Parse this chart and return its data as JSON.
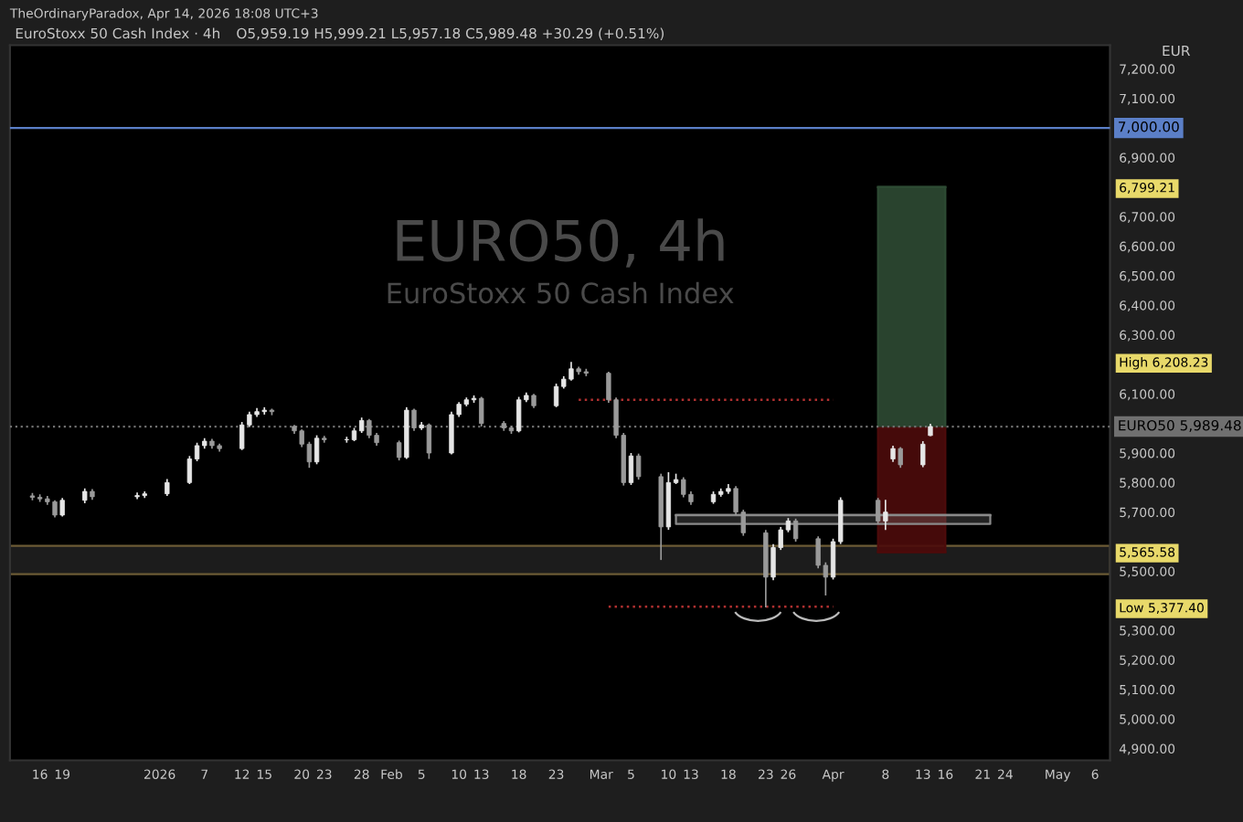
{
  "chart_data": {
    "type": "candlestick",
    "title": "EuroStoxx 50 Cash Index · 4h",
    "subtitle": "O5,959.19 H5,999.21 L5,957.18 C5,989.48 +30.29 (+0.51%)",
    "ylabel": "EUR",
    "annotations": [
      "TheOrdinaryParadox, Apr 14, 2026 18:08 UTC+3",
      "EURO50, 4h",
      "EuroStoxx 50 Cash Index"
    ],
    "x": [
      "2025-12-15",
      "2025-12-16",
      "2025-12-17",
      "2025-12-18",
      "2025-12-19",
      "2025-12-22",
      "2025-12-23",
      "2025-12-29",
      "2025-12-30",
      "2026-01-02",
      "2026-01-05",
      "2026-01-06",
      "2026-01-07",
      "2026-01-08",
      "2026-01-09",
      "2026-01-12",
      "2026-01-13",
      "2026-01-14",
      "2026-01-15",
      "2026-01-16",
      "2026-01-19",
      "2026-01-20",
      "2026-01-21",
      "2026-01-22",
      "2026-01-23",
      "2026-01-26",
      "2026-01-27",
      "2026-01-28",
      "2026-01-29",
      "2026-01-30",
      "2026-02-02",
      "2026-02-03",
      "2026-02-04",
      "2026-02-05",
      "2026-02-06",
      "2026-02-09",
      "2026-02-10",
      "2026-02-11",
      "2026-02-12",
      "2026-02-13",
      "2026-02-16",
      "2026-02-17",
      "2026-02-18",
      "2026-02-19",
      "2026-02-20",
      "2026-02-23",
      "2026-02-24",
      "2026-02-25",
      "2026-02-26",
      "2026-02-27",
      "2026-03-02",
      "2026-03-03",
      "2026-03-04",
      "2026-03-05",
      "2026-03-06",
      "2026-03-09",
      "2026-03-10",
      "2026-03-11",
      "2026-03-12",
      "2026-03-13",
      "2026-03-16",
      "2026-03-17",
      "2026-03-18",
      "2026-03-19",
      "2026-03-20",
      "2026-03-23",
      "2026-03-24",
      "2026-03-25",
      "2026-03-26",
      "2026-03-27",
      "2026-03-30",
      "2026-03-31",
      "2026-04-01",
      "2026-04-02",
      "2026-04-07",
      "2026-04-08",
      "2026-04-09",
      "2026-04-10",
      "2026-04-13",
      "2026-04-14"
    ],
    "ohlc": [
      [
        5755,
        5765,
        5740,
        5750
      ],
      [
        5750,
        5760,
        5735,
        5745
      ],
      [
        5745,
        5755,
        5725,
        5735
      ],
      [
        5735,
        5740,
        5682,
        5690
      ],
      [
        5690,
        5748,
        5685,
        5740
      ],
      [
        5740,
        5780,
        5730,
        5770
      ],
      [
        5770,
        5778,
        5742,
        5752
      ],
      [
        5752,
        5766,
        5744,
        5756
      ],
      [
        5756,
        5770,
        5748,
        5762
      ],
      [
        5762,
        5812,
        5755,
        5800
      ],
      [
        5800,
        5890,
        5795,
        5880
      ],
      [
        5880,
        5935,
        5872,
        5925
      ],
      [
        5925,
        5950,
        5915,
        5940
      ],
      [
        5940,
        5948,
        5915,
        5925
      ],
      [
        5925,
        5932,
        5905,
        5915
      ],
      [
        5915,
        6005,
        5910,
        5995
      ],
      [
        5995,
        6040,
        5988,
        6030
      ],
      [
        6030,
        6052,
        6022,
        6040
      ],
      [
        6040,
        6055,
        6030,
        6045
      ],
      [
        6045,
        6050,
        6028,
        6040
      ],
      [
        5990,
        5995,
        5965,
        5975
      ],
      [
        5975,
        5980,
        5920,
        5930
      ],
      [
        5930,
        5938,
        5850,
        5870
      ],
      [
        5870,
        5960,
        5862,
        5950
      ],
      [
        5950,
        5958,
        5935,
        5945
      ],
      [
        5945,
        5955,
        5935,
        5945
      ],
      [
        5945,
        5985,
        5940,
        5975
      ],
      [
        5975,
        6020,
        5968,
        6010
      ],
      [
        6010,
        6015,
        5950,
        5960
      ],
      [
        5960,
        5968,
        5925,
        5935
      ],
      [
        5935,
        5942,
        5875,
        5885
      ],
      [
        5885,
        6055,
        5880,
        6045
      ],
      [
        6045,
        6050,
        5975,
        5985
      ],
      [
        5985,
        6005,
        5978,
        5995
      ],
      [
        5995,
        6000,
        5880,
        5900
      ],
      [
        5900,
        6040,
        5895,
        6030
      ],
      [
        6030,
        6072,
        6022,
        6065
      ],
      [
        6065,
        6088,
        6058,
        6080
      ],
      [
        6080,
        6095,
        6070,
        6085
      ],
      [
        6085,
        6090,
        5990,
        6000
      ],
      [
        6000,
        6008,
        5975,
        5985
      ],
      [
        5985,
        5992,
        5965,
        5975
      ],
      [
        5975,
        6090,
        5970,
        6080
      ],
      [
        6080,
        6105,
        6072,
        6095
      ],
      [
        6095,
        6100,
        6052,
        6060
      ],
      [
        6060,
        6135,
        6055,
        6125
      ],
      [
        6125,
        6160,
        6118,
        6150
      ],
      [
        6150,
        6208.23,
        6145,
        6185
      ],
      [
        6185,
        6192,
        6165,
        6175
      ],
      [
        6175,
        6185,
        6160,
        6170
      ],
      [
        6170,
        6175,
        6070,
        6080
      ],
      [
        6080,
        6088,
        5950,
        5960
      ],
      [
        5960,
        5968,
        5790,
        5800
      ],
      [
        5800,
        5900,
        5792,
        5890
      ],
      [
        5890,
        5898,
        5810,
        5820
      ],
      [
        5820,
        5830,
        5538,
        5650
      ],
      [
        5650,
        5835,
        5640,
        5800
      ],
      [
        5800,
        5830,
        5795,
        5810
      ],
      [
        5810,
        5818,
        5750,
        5760
      ],
      [
        5760,
        5770,
        5725,
        5735
      ],
      [
        5735,
        5770,
        5728,
        5760
      ],
      [
        5760,
        5780,
        5752,
        5770
      ],
      [
        5770,
        5795,
        5762,
        5780
      ],
      [
        5780,
        5788,
        5690,
        5700
      ],
      [
        5700,
        5708,
        5620,
        5630
      ],
      [
        5630,
        5640,
        5377.4,
        5480
      ],
      [
        5480,
        5592,
        5470,
        5580
      ],
      [
        5580,
        5650,
        5572,
        5640
      ],
      [
        5640,
        5680,
        5632,
        5670
      ],
      [
        5670,
        5678,
        5600,
        5610
      ],
      [
        5610,
        5618,
        5510,
        5520
      ],
      [
        5520,
        5530,
        5418,
        5480
      ],
      [
        5480,
        5610,
        5472,
        5600
      ],
      [
        5600,
        5750,
        5592,
        5740
      ],
      [
        5740,
        5748,
        5660,
        5670
      ],
      [
        5670,
        5742,
        5640,
        5700
      ],
      [
        5880,
        5925,
        5870,
        5915
      ],
      [
        5915,
        5920,
        5850,
        5860
      ],
      [
        5860,
        5940,
        5852,
        5930
      ],
      [
        5959.19,
        5999.21,
        5957.18,
        5989.48
      ]
    ],
    "series": [
      {
        "type": "line",
        "color": "#2d4a33",
        "x": [
          "2026-04-07",
          "2026-04-16"
        ],
        "values": [
          6800,
          6800
        ],
        "lower": [
          5985,
          5985
        ],
        "upper": [
          6800,
          6800
        ]
      },
      {
        "type": "line",
        "color": "#4d0b0b",
        "x": [
          "2026-04-07",
          "2026-04-16"
        ],
        "values": [
          5565,
          5565
        ],
        "lower": [
          5565,
          5565
        ],
        "upper": [
          5985,
          5985
        ]
      },
      {
        "type": "line",
        "color": "#8a8a8a",
        "x": [
          "2026-03-11",
          "2026-04-22"
        ],
        "values": [
          5690,
          5690
        ],
        "lower": [
          5660,
          5660
        ],
        "upper": [
          5690,
          5690
        ]
      },
      {
        "type": "line",
        "color": "#b03030",
        "line_style": "dotted",
        "x": [
          "2026-02-26",
          "2026-04-01"
        ],
        "values": [
          6080,
          6080
        ]
      },
      {
        "type": "line",
        "color": "#b03030",
        "line_style": "dotted",
        "x": [
          "2026-03-02",
          "2026-04-01"
        ],
        "values": [
          5380,
          5380
        ]
      }
    ],
    "ref_lines": [
      {
        "axis": "y",
        "value": 7000,
        "label": "7,000.00",
        "color": "#5b7fc7",
        "line_style": "solid"
      },
      {
        "axis": "y",
        "value": 5989.48,
        "label": "EURO50 5,989.48",
        "color": "#707070",
        "line_style": "dotted"
      }
    ],
    "bands": [
      {
        "axis": "y",
        "from": 5490,
        "to": 5586,
        "color": "#1c1c1c"
      }
    ],
    "xlim": [
      "2025-12-12",
      "2026-05-08"
    ],
    "xticks": [
      {
        "value": "2025-12-16",
        "label": "16"
      },
      {
        "value": "2025-12-19",
        "label": "19"
      },
      {
        "value": "2026-01-01",
        "label": "2026"
      },
      {
        "value": "2026-01-07",
        "label": "7"
      },
      {
        "value": "2026-01-12",
        "label": "12"
      },
      {
        "value": "2026-01-15",
        "label": "15"
      },
      {
        "value": "2026-01-20",
        "label": "20"
      },
      {
        "value": "2026-01-23",
        "label": "23"
      },
      {
        "value": "2026-01-28",
        "label": "28"
      },
      {
        "value": "2026-02-01",
        "label": "Feb"
      },
      {
        "value": "2026-02-05",
        "label": "5"
      },
      {
        "value": "2026-02-10",
        "label": "10"
      },
      {
        "value": "2026-02-13",
        "label": "13"
      },
      {
        "value": "2026-02-18",
        "label": "18"
      },
      {
        "value": "2026-02-23",
        "label": "23"
      },
      {
        "value": "2026-03-01",
        "label": "Mar"
      },
      {
        "value": "2026-03-05",
        "label": "5"
      },
      {
        "value": "2026-03-10",
        "label": "10"
      },
      {
        "value": "2026-03-13",
        "label": "13"
      },
      {
        "value": "2026-03-18",
        "label": "18"
      },
      {
        "value": "2026-03-23",
        "label": "23"
      },
      {
        "value": "2026-03-26",
        "label": "26"
      },
      {
        "value": "2026-04-01",
        "label": "Apr"
      },
      {
        "value": "2026-04-08",
        "label": "8"
      },
      {
        "value": "2026-04-13",
        "label": "13"
      },
      {
        "value": "2026-04-16",
        "label": "16"
      },
      {
        "value": "2026-04-21",
        "label": "21"
      },
      {
        "value": "2026-04-24",
        "label": "24"
      },
      {
        "value": "2026-05-01",
        "label": "May"
      },
      {
        "value": "2026-05-06",
        "label": "6"
      }
    ],
    "ylim": [
      4860,
      7280
    ],
    "yticks": [
      {
        "value": 7200,
        "label": "7,200.00"
      },
      {
        "value": 7100,
        "label": "7,100.00"
      },
      {
        "value": 6900,
        "label": "6,900.00"
      },
      {
        "value": 6799.21,
        "label": "6,799.21"
      },
      {
        "value": 6700,
        "label": "6,700.00"
      },
      {
        "value": 6600,
        "label": "6,600.00"
      },
      {
        "value": 6500,
        "label": "6,500.00"
      },
      {
        "value": 6400,
        "label": "6,400.00"
      },
      {
        "value": 6300,
        "label": "6,300.00"
      },
      {
        "value": 6208.23,
        "label": "High 6,208.23"
      },
      {
        "value": 6100,
        "label": "6,100.00"
      },
      {
        "value": 5900,
        "label": "5,900.00"
      },
      {
        "value": 5800,
        "label": "5,800.00"
      },
      {
        "value": 5700,
        "label": "5,700.00"
      },
      {
        "value": 5565.58,
        "label": "5,565.58"
      },
      {
        "value": 5500,
        "label": "5,500.00"
      },
      {
        "value": 5377.4,
        "label": "Low 5,377.40"
      },
      {
        "value": 5300,
        "label": "5,300.00"
      },
      {
        "value": 5200,
        "label": "5,200.00"
      },
      {
        "value": 5100,
        "label": "5,100.00"
      },
      {
        "value": 5000,
        "label": "5,000.00"
      },
      {
        "value": 4900,
        "label": "4,900.00"
      }
    ]
  }
}
